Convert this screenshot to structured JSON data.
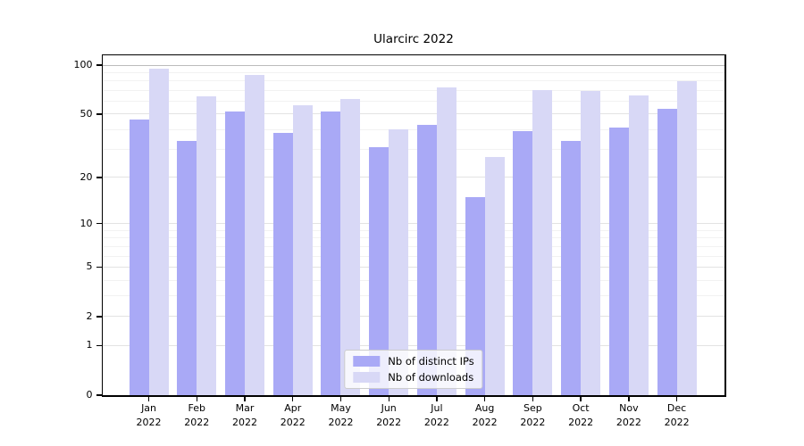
{
  "title": "Ularcirc 2022",
  "colors": {
    "distinct_ips_bar": "#a9a9f6",
    "downloads_bar": "#d8d8f6",
    "axis": "#000000",
    "grid_top_line": "#bbbbbb",
    "grid_major": "#e3e3e3",
    "grid_minor": "#f2f2f2",
    "legend_border": "#cccccc"
  },
  "chart_data": {
    "type": "bar",
    "title": "Ularcirc 2022",
    "categories": [
      "Jan 2022",
      "Feb 2022",
      "Mar 2022",
      "Apr 2022",
      "May 2022",
      "Jun 2022",
      "Jul 2022",
      "Aug 2022",
      "Sep 2022",
      "Oct 2022",
      "Nov 2022",
      "Dec 2022"
    ],
    "series": [
      {
        "name": "Nb of distinct IPs",
        "color": "#a9a9f6",
        "values": [
          46,
          34,
          52,
          38,
          52,
          31,
          43,
          15,
          39,
          34,
          41,
          54
        ]
      },
      {
        "name": "Nb of downloads",
        "color": "#d8d8f6",
        "values": [
          95,
          64,
          87,
          57,
          62,
          40,
          73,
          27,
          70,
          69,
          65,
          80
        ]
      }
    ],
    "xlabel": "",
    "ylabel": "",
    "yscale": "log1p",
    "yticks": [
      100,
      50,
      20,
      10,
      5,
      2,
      1,
      0
    ],
    "ylim": [
      0,
      115
    ],
    "grid": true,
    "legend_position": "bottom-center"
  }
}
